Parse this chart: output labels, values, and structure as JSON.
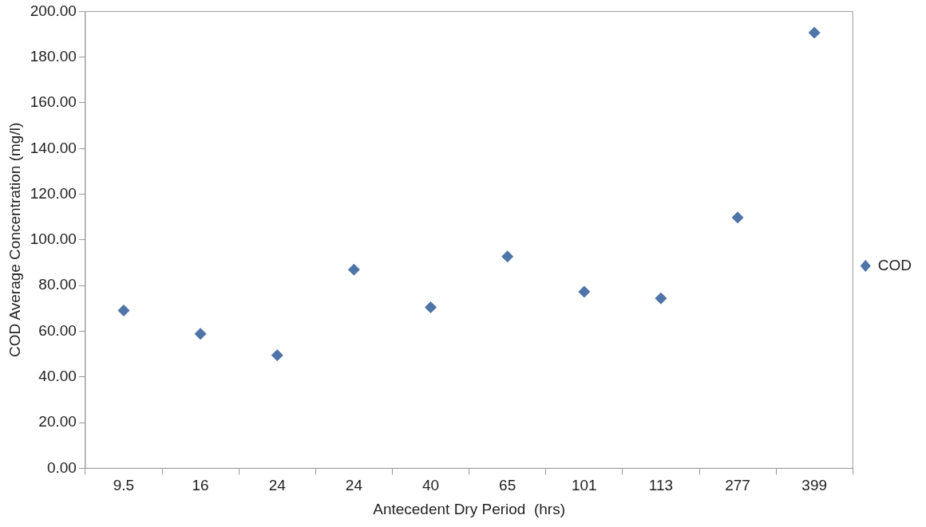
{
  "chart_data": {
    "type": "scatter",
    "xlabel": "Antecedent Dry Period  (hrs)",
    "ylabel": "COD Average Concentration (mg/l)",
    "categories": [
      "9.5",
      "16",
      "24",
      "24",
      "40",
      "65",
      "101",
      "113",
      "277",
      "399"
    ],
    "series": [
      {
        "name": "COD",
        "color": "#4f74a8",
        "values": [
          69.1,
          58.9,
          49.5,
          87.0,
          70.5,
          92.7,
          77.3,
          74.4,
          109.8,
          190.7
        ]
      }
    ],
    "ylim": [
      0,
      200
    ],
    "yticks": [
      {
        "value": 0,
        "label": "0.00"
      },
      {
        "value": 20,
        "label": "20.00"
      },
      {
        "value": 40,
        "label": "40.00"
      },
      {
        "value": 60,
        "label": "60.00"
      },
      {
        "value": 80,
        "label": "80.00"
      },
      {
        "value": 100,
        "label": "100.00"
      },
      {
        "value": 120,
        "label": "120.00"
      },
      {
        "value": 140,
        "label": "140.00"
      },
      {
        "value": 160,
        "label": "160.00"
      },
      {
        "value": 180,
        "label": "180.00"
      },
      {
        "value": 200,
        "label": "200.00"
      }
    ],
    "grid": false,
    "legend": "right",
    "marker": "diamond"
  }
}
